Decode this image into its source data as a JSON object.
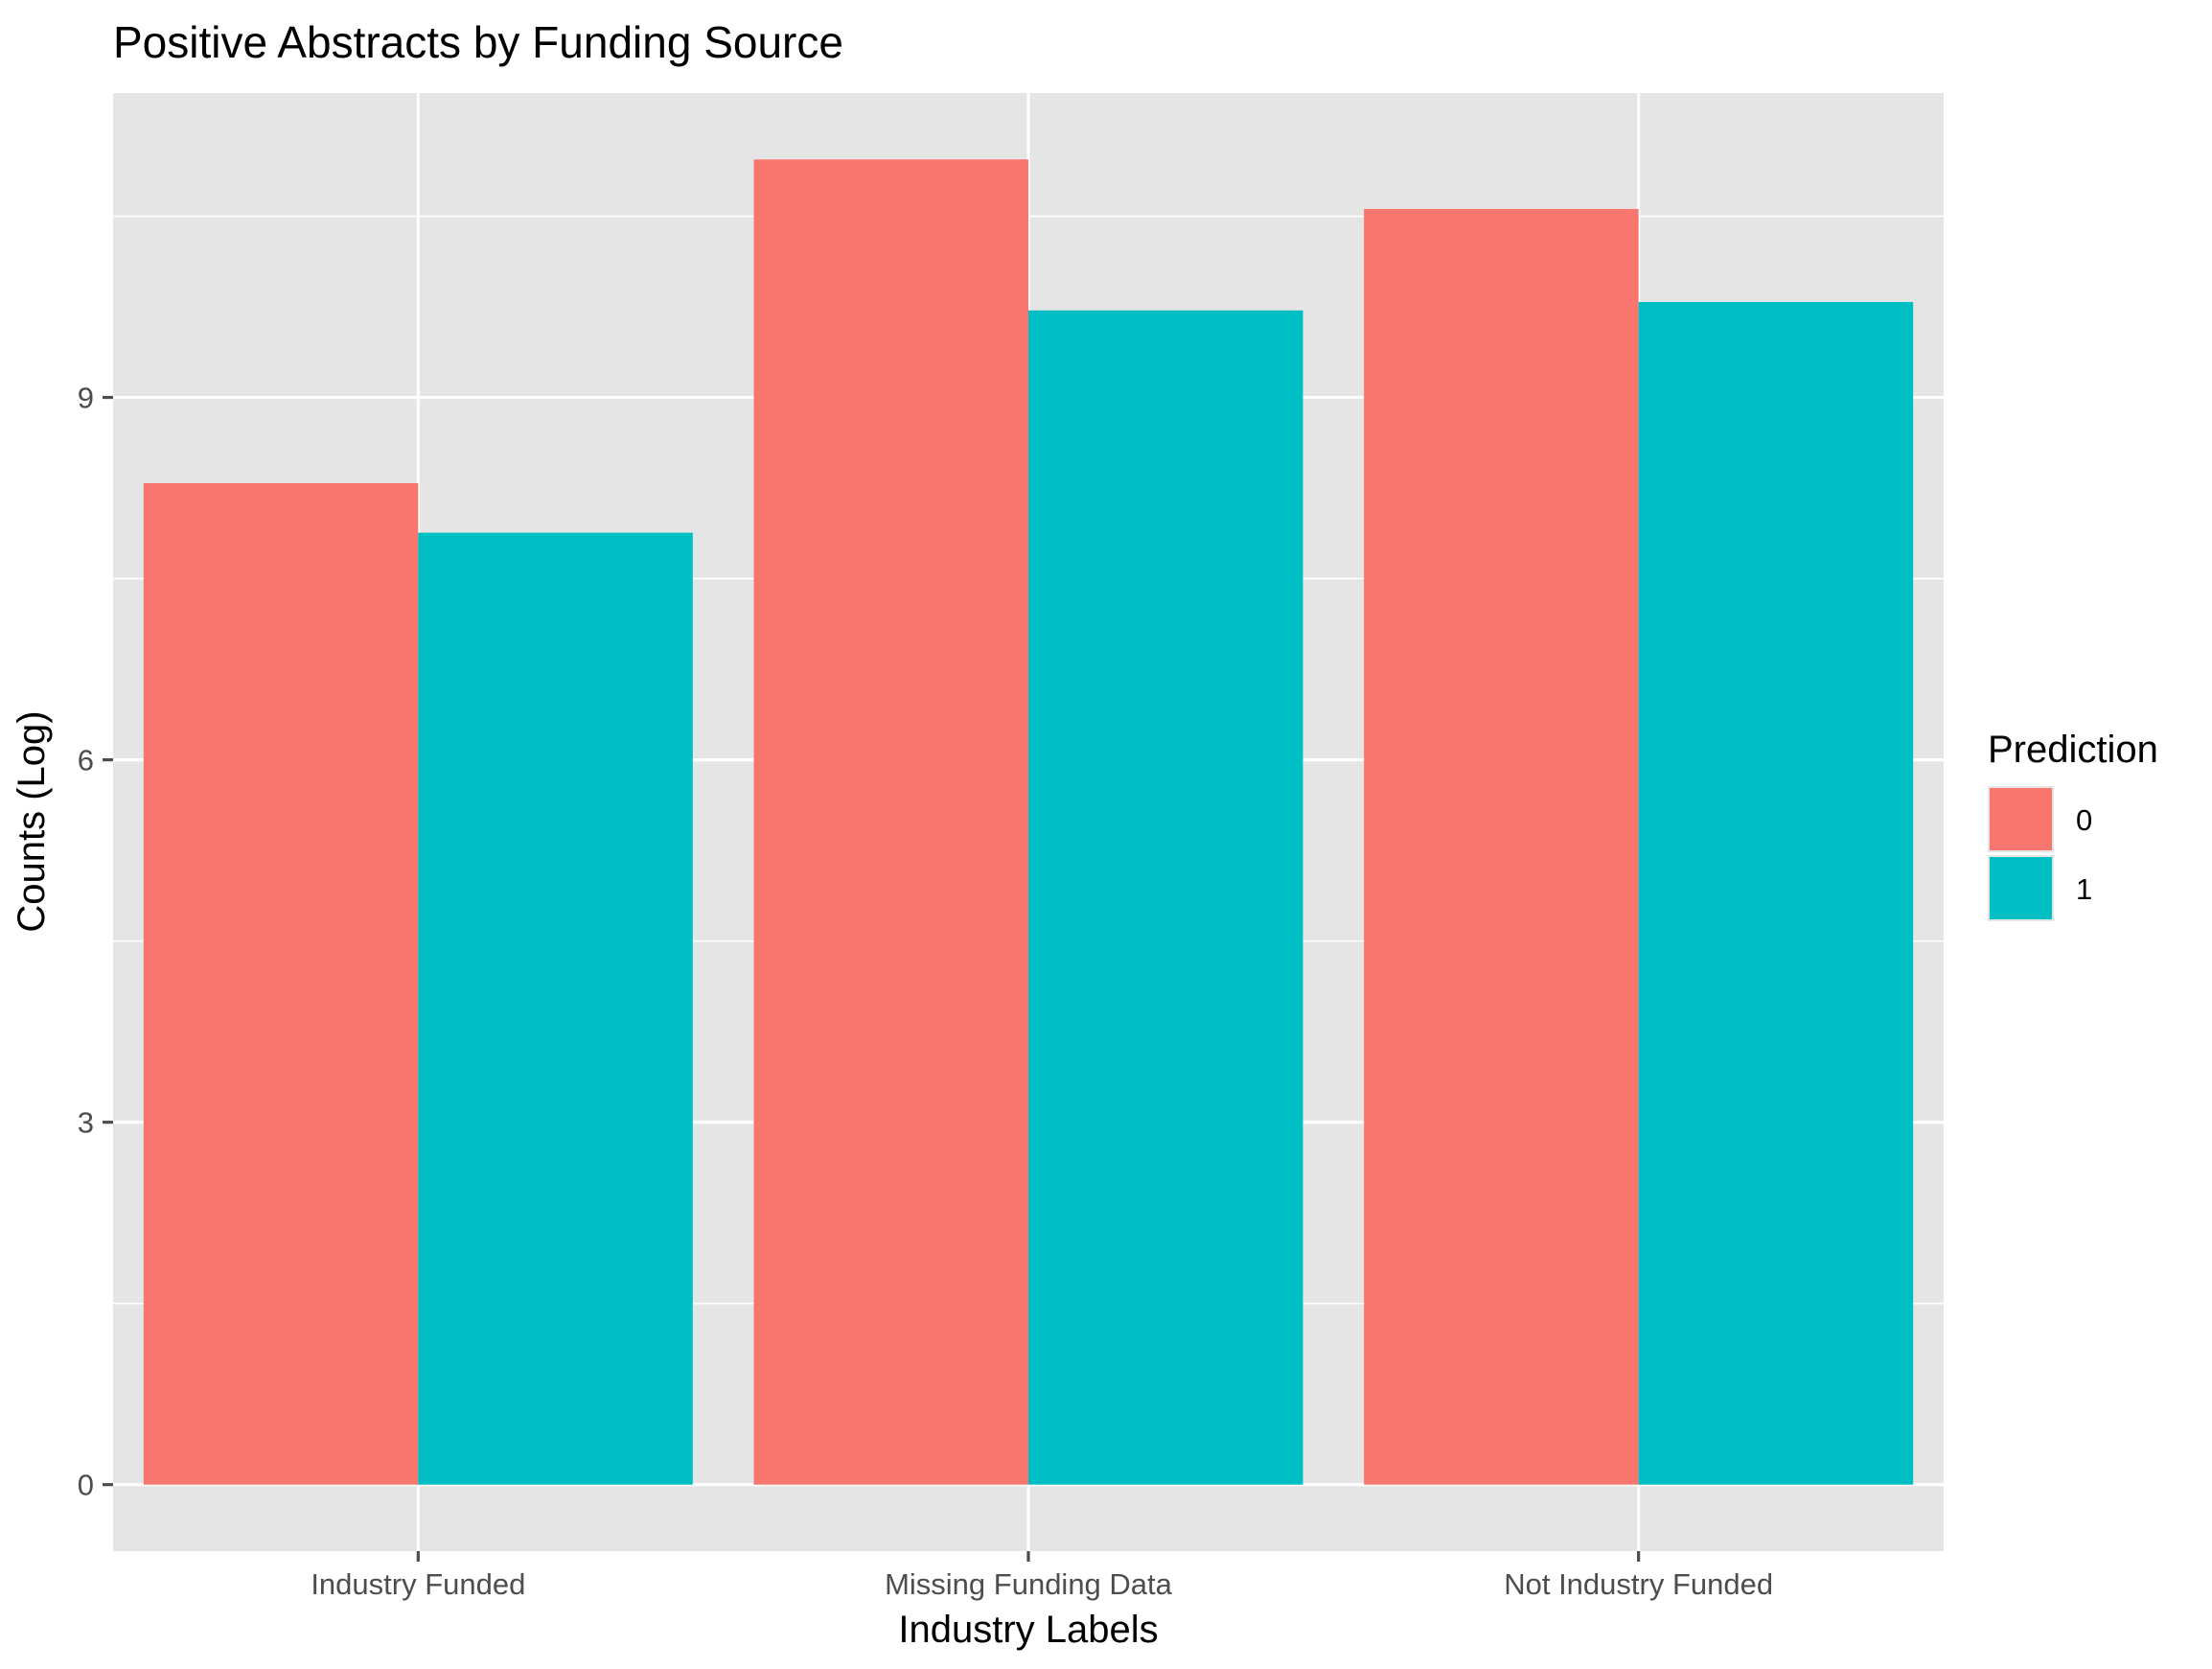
{
  "chart_data": {
    "type": "bar",
    "title": "Positive Abstracts by Funding Source",
    "xlabel": "Industry Labels",
    "ylabel": "Counts (Log)",
    "categories": [
      "Industry Funded",
      "Missing Funding Data",
      "Not Industry Funded"
    ],
    "series": [
      {
        "name": "0",
        "color": "#F8766D",
        "values": [
          8.29,
          10.97,
          10.56
        ]
      },
      {
        "name": "1",
        "color": "#00BFC4",
        "values": [
          7.88,
          9.72,
          9.79
        ]
      }
    ],
    "ylim": [
      -0.55,
      11.52
    ],
    "yticks": [
      0,
      3,
      6,
      9
    ],
    "yticks_minor": [
      1.5,
      4.5,
      7.5,
      10.5
    ],
    "grid": true,
    "legend": {
      "title": "Prediction",
      "position": "right"
    },
    "colors": {
      "panel": "#E5E5E5",
      "grid": "#FFFFFF",
      "tick": "#4D4D4D"
    }
  }
}
